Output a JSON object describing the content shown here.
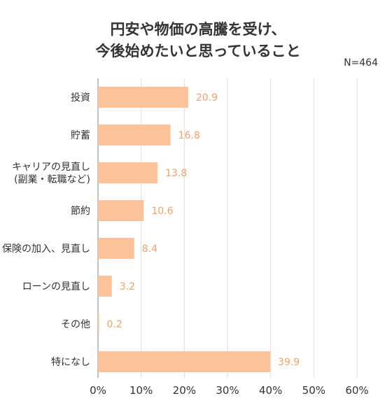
{
  "title_lines": [
    "円安や物価の高騰を受け、",
    "今後始めたいと思っていること"
  ],
  "sample_note": "N=464",
  "chart_data": {
    "type": "bar",
    "orientation": "horizontal",
    "title": "円安や物価の高騰を受け、今後始めたいと思っていること",
    "categories": [
      [
        "投資"
      ],
      [
        "貯蓄"
      ],
      [
        "キャリアの見直し",
        "(副業・転職など)"
      ],
      [
        "節約"
      ],
      [
        "保険の加入、見直し"
      ],
      [
        "ローンの見直し"
      ],
      [
        "その他"
      ],
      [
        "特になし"
      ]
    ],
    "values": [
      20.9,
      16.8,
      13.8,
      10.6,
      8.4,
      3.2,
      0.2,
      39.9
    ],
    "value_labels": [
      "20.9",
      "16.8",
      "13.8",
      "10.6",
      "8.4",
      "3.2",
      "0.2",
      "39.9"
    ],
    "xlim": [
      0,
      60
    ],
    "ticks": [
      0,
      10,
      20,
      30,
      40,
      50,
      60
    ],
    "tick_labels": [
      "0%",
      "10%",
      "20%",
      "30%",
      "40%",
      "50%",
      "60%"
    ],
    "grid": true,
    "colors": {
      "bar": "#FCC39A",
      "value_label": "#F4A26B",
      "grid": "#DDDDDD",
      "axis": "#999999"
    }
  }
}
